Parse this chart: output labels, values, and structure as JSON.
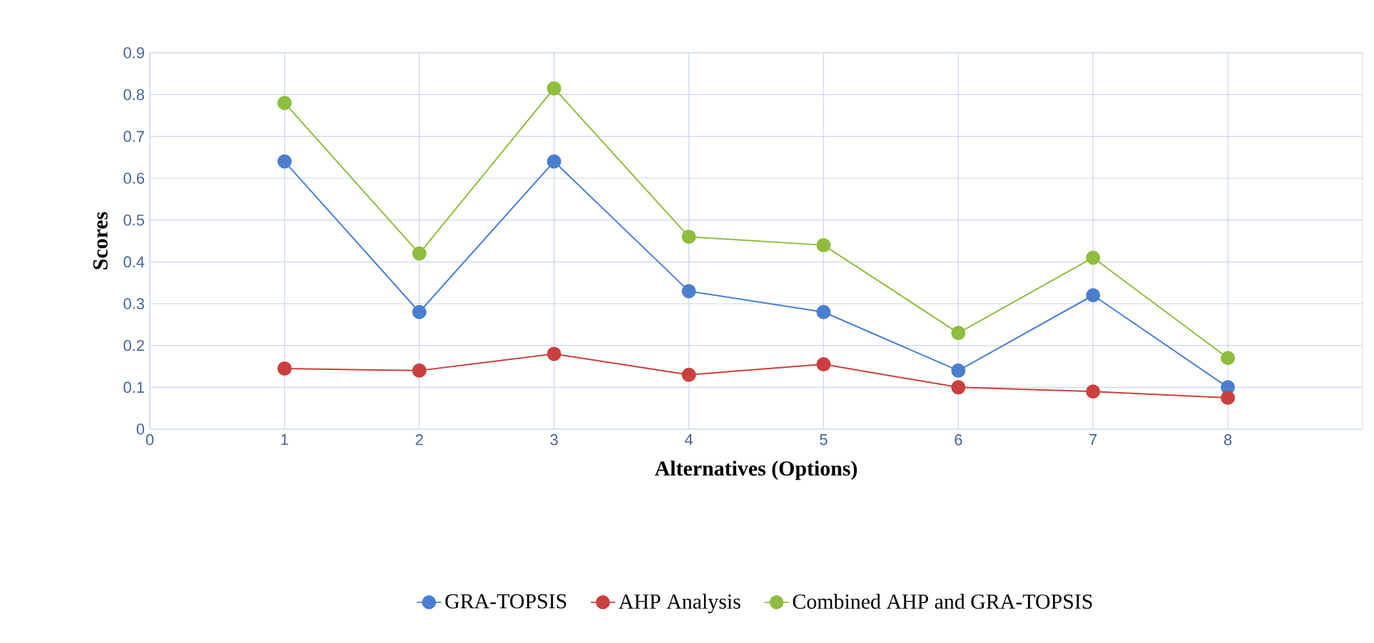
{
  "chart_data": {
    "type": "line",
    "xlabel": "Alternatives (Options)",
    "ylabel": "Scores",
    "x": [
      1,
      2,
      3,
      4,
      5,
      6,
      7,
      8
    ],
    "series": [
      {
        "name": "GRA-TOPSIS",
        "color": "#4a7fcf",
        "values": [
          0.64,
          0.28,
          0.64,
          0.33,
          0.28,
          0.14,
          0.32,
          0.1
        ]
      },
      {
        "name": "AHP Analysis",
        "color": "#c9403f",
        "values": [
          0.145,
          0.14,
          0.18,
          0.13,
          0.155,
          0.1,
          0.09,
          0.075
        ]
      },
      {
        "name": "Combined AHP and GRA-TOPSIS",
        "color": "#8fbd3f",
        "values": [
          0.78,
          0.42,
          0.815,
          0.46,
          0.44,
          0.23,
          0.41,
          0.17
        ]
      }
    ],
    "xlim": [
      0,
      9
    ],
    "xticks": [
      0,
      1,
      2,
      3,
      4,
      5,
      6,
      7,
      8
    ],
    "ylim": [
      0,
      0.9
    ],
    "yticks": [
      0,
      0.1,
      0.2,
      0.3,
      0.4,
      0.5,
      0.6,
      0.7,
      0.8,
      0.9
    ],
    "grid": true,
    "legend": "bottom",
    "marker": "circle",
    "line_style": "solid"
  }
}
